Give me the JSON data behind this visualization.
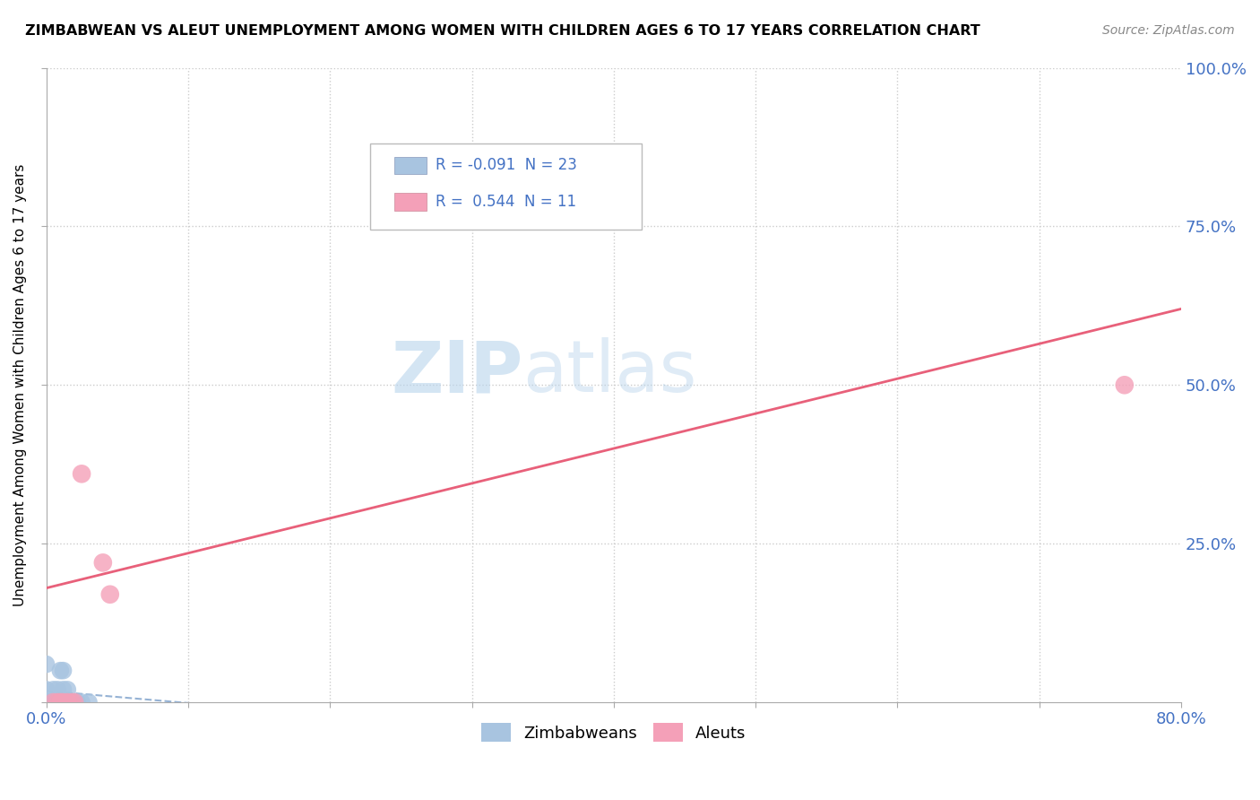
{
  "title": "ZIMBABWEAN VS ALEUT UNEMPLOYMENT AMONG WOMEN WITH CHILDREN AGES 6 TO 17 YEARS CORRELATION CHART",
  "source": "Source: ZipAtlas.com",
  "ylabel": "Unemployment Among Women with Children Ages 6 to 17 years",
  "xlim": [
    0.0,
    0.8
  ],
  "ylim": [
    0.0,
    1.0
  ],
  "blue_R": -0.091,
  "blue_N": 23,
  "pink_R": 0.544,
  "pink_N": 11,
  "blue_color": "#a8c4e0",
  "pink_color": "#f4a0b8",
  "blue_line_color": "#8aaad0",
  "pink_line_color": "#e8607a",
  "label_color": "#4472c4",
  "blue_x": [
    0.0,
    0.0,
    0.0,
    0.002,
    0.003,
    0.005,
    0.005,
    0.007,
    0.008,
    0.01,
    0.01,
    0.01,
    0.012,
    0.012,
    0.013,
    0.015,
    0.015,
    0.016,
    0.018,
    0.02,
    0.022,
    0.025,
    0.03
  ],
  "blue_y": [
    0.0,
    0.02,
    0.06,
    0.0,
    0.0,
    0.0,
    0.02,
    0.0,
    0.02,
    0.0,
    0.0,
    0.05,
    0.05,
    0.02,
    0.0,
    0.0,
    0.02,
    0.0,
    0.0,
    0.0,
    0.0,
    0.0,
    0.0
  ],
  "pink_x": [
    0.005,
    0.008,
    0.01,
    0.012,
    0.015,
    0.018,
    0.02,
    0.025,
    0.04,
    0.045,
    0.76
  ],
  "pink_y": [
    0.0,
    0.0,
    0.0,
    0.0,
    0.0,
    0.0,
    0.0,
    0.36,
    0.22,
    0.17,
    0.5
  ],
  "background_color": "#ffffff",
  "grid_color": "#cccccc"
}
